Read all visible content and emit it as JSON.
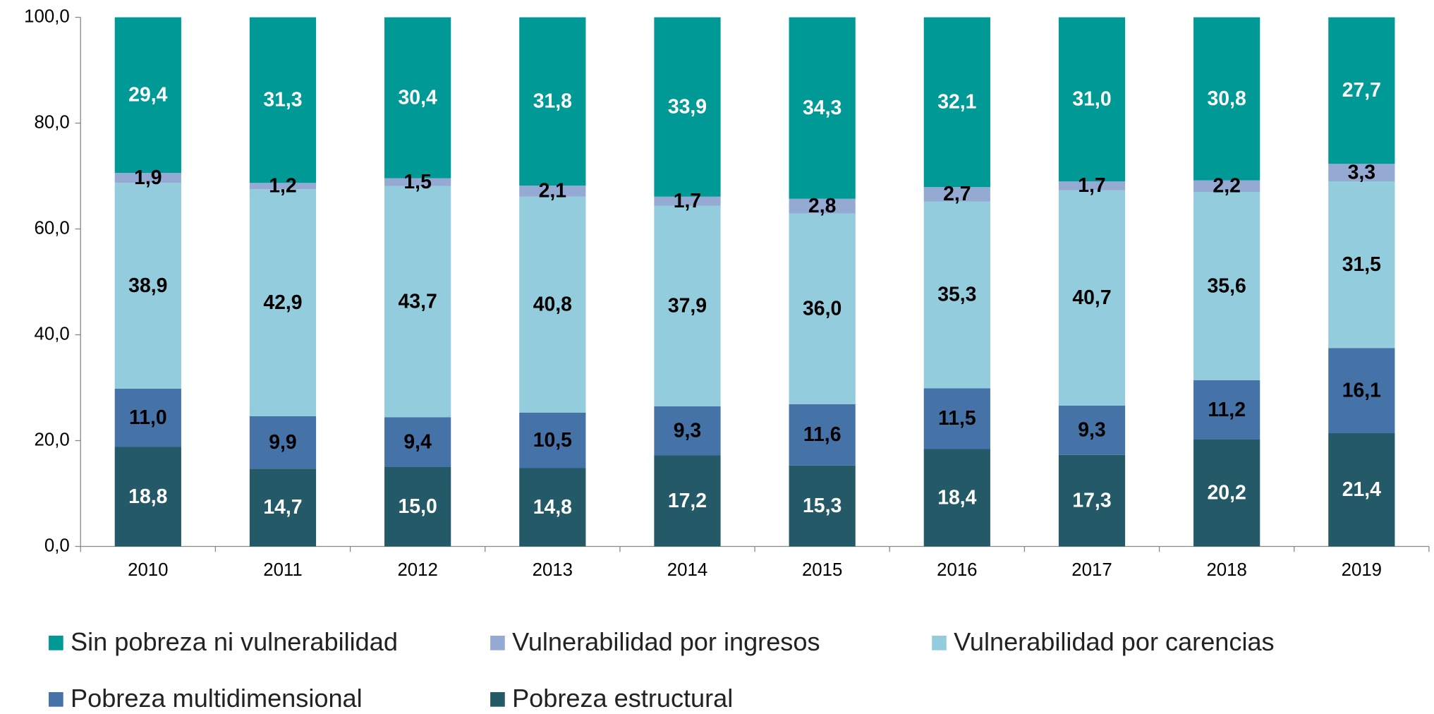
{
  "chart_data": {
    "type": "stacked_bar",
    "categories": [
      "2010",
      "2011",
      "2012",
      "2013",
      "2014",
      "2015",
      "2016",
      "2017",
      "2018",
      "2019"
    ],
    "ylim": [
      0,
      100
    ],
    "yticks": [
      {
        "value": 0,
        "label": "0,0"
      },
      {
        "value": 20,
        "label": "20,0"
      },
      {
        "value": 40,
        "label": "40,0"
      },
      {
        "value": 60,
        "label": "60,0"
      },
      {
        "value": 80,
        "label": "80,0"
      },
      {
        "value": 100,
        "label": "100,0"
      }
    ],
    "series": [
      {
        "name": "Sin pobreza ni vulnerabilidad",
        "color": "#009a96",
        "label_color": "#ffffff",
        "values": [
          29.4,
          31.3,
          30.4,
          31.8,
          33.9,
          34.3,
          32.1,
          31.0,
          30.8,
          27.7
        ],
        "value_labels": [
          "29,4",
          "31,3",
          "30,4",
          "31,8",
          "33,9",
          "34,3",
          "32,1",
          "31,0",
          "30,8",
          "27,7"
        ]
      },
      {
        "name": "Vulnerabilidad por ingresos",
        "color": "#95aad3",
        "label_color": "#000000",
        "values": [
          1.9,
          1.2,
          1.5,
          2.1,
          1.7,
          2.8,
          2.7,
          1.7,
          2.2,
          3.3
        ],
        "value_labels": [
          "1,9",
          "1,2",
          "1,5",
          "2,1",
          "1,7",
          "2,8",
          "2,7",
          "1,7",
          "2,2",
          "3,3"
        ]
      },
      {
        "name": "Vulnerabilidad por carencias",
        "color": "#93cddd",
        "label_color": "#000000",
        "values": [
          38.9,
          42.9,
          43.7,
          40.8,
          37.9,
          36.0,
          35.3,
          40.7,
          35.6,
          31.5
        ],
        "value_labels": [
          "38,9",
          "42,9",
          "43,7",
          "40,8",
          "37,9",
          "36,0",
          "35,3",
          "40,7",
          "35,6",
          "31,5"
        ]
      },
      {
        "name": "Pobreza multidimensional",
        "color": "#4572a7",
        "label_color": "#000000",
        "values": [
          11.0,
          9.9,
          9.4,
          10.5,
          9.3,
          11.6,
          11.5,
          9.3,
          11.2,
          16.1
        ],
        "value_labels": [
          "11,0",
          "9,9",
          "9,4",
          "10,5",
          "9,3",
          "11,6",
          "11,5",
          "9,3",
          "11,2",
          "16,1"
        ]
      },
      {
        "name": "Pobreza estructural",
        "color": "#245a67",
        "label_color": "#ffffff",
        "values": [
          18.8,
          14.7,
          15.0,
          14.8,
          17.2,
          15.3,
          18.4,
          17.3,
          20.2,
          21.4
        ],
        "value_labels": [
          "18,8",
          "14,7",
          "15,0",
          "14,8",
          "17,2",
          "15,3",
          "18,4",
          "17,3",
          "20,2",
          "21,4"
        ]
      }
    ]
  }
}
